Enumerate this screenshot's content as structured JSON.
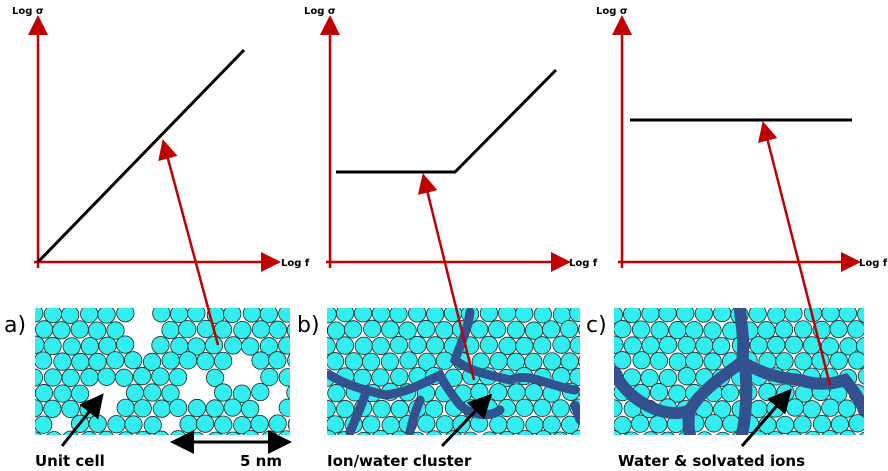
{
  "panels": [
    {
      "label": "a)",
      "y_axis": "Log σ",
      "x_axis": "Log f",
      "caption": "Unit cell"
    },
    {
      "label": "b)",
      "y_axis": "Log σ",
      "x_axis": "Log f",
      "caption": "Ion/water cluster"
    },
    {
      "label": "c)",
      "y_axis": "Log σ",
      "x_axis": "Log f",
      "caption": "Water & solvated ions"
    }
  ],
  "scale_bar": "5 nm"
}
